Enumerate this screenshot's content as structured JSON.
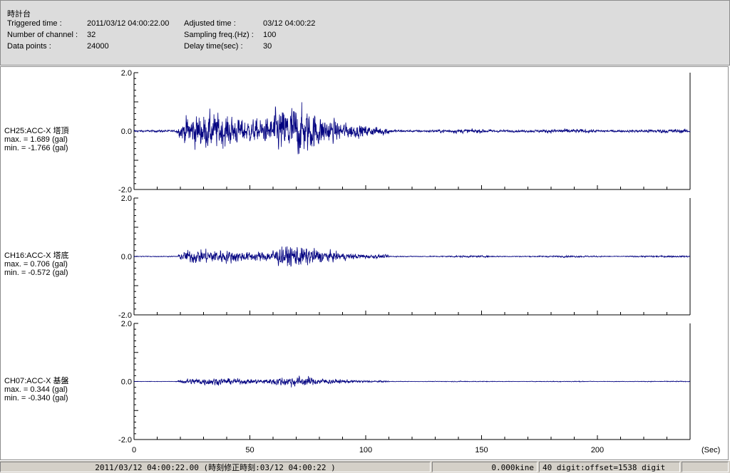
{
  "header": {
    "title": "時計台",
    "fields": [
      {
        "label": "Triggered time :",
        "value": "2011/03/12 04:00:22.00"
      },
      {
        "label": "Number of channel :",
        "value": "32"
      },
      {
        "label": "Data points :",
        "value": "24000"
      },
      {
        "label": "Adjusted time :",
        "value": "03/12 04:00:22"
      },
      {
        "label": "Sampling freq.(Hz) :",
        "value": "100"
      },
      {
        "label": "Delay time(sec) :",
        "value": "30"
      }
    ]
  },
  "chart_data": {
    "type": "line",
    "xlabel": "(Sec)",
    "xlim": [
      0,
      240
    ],
    "x_ticks": [
      "0",
      "50",
      "100",
      "150",
      "200"
    ],
    "line_color": "#000080",
    "channels": [
      {
        "name": "CH25:ACC-X 塔頂",
        "max_text": "max. = 1.689 (gal)",
        "min_text": "min. = -1.766 (gal)",
        "max": 1.689,
        "min": -1.766,
        "ylim": [
          -2.0,
          2.0
        ],
        "y_ticks": [
          "2.0",
          "0.0",
          "-2.0"
        ]
      },
      {
        "name": "CH16:ACC-X 塔底",
        "max_text": "max. = 0.706 (gal)",
        "min_text": "min. = -0.572 (gal)",
        "max": 0.706,
        "min": -0.572,
        "ylim": [
          -2.0,
          2.0
        ],
        "y_ticks": [
          "2.0",
          "0.0",
          "-2.0"
        ]
      },
      {
        "name": "CH07:ACC-X 基盤",
        "max_text": "max. = 0.344 (gal)",
        "min_text": "min. = -0.340 (gal)",
        "max": 0.344,
        "min": -0.34,
        "ylim": [
          -2.0,
          2.0
        ],
        "y_ticks": [
          "2.0",
          "0.0",
          "-2.0"
        ]
      }
    ]
  },
  "statusbar": {
    "time": "2011/03/12 04:00:22.00  (時刻修正時刻:03/12 04:00:22  )",
    "kine": "0.000kine",
    "digit": "40 digit:offset=1538 digit"
  }
}
